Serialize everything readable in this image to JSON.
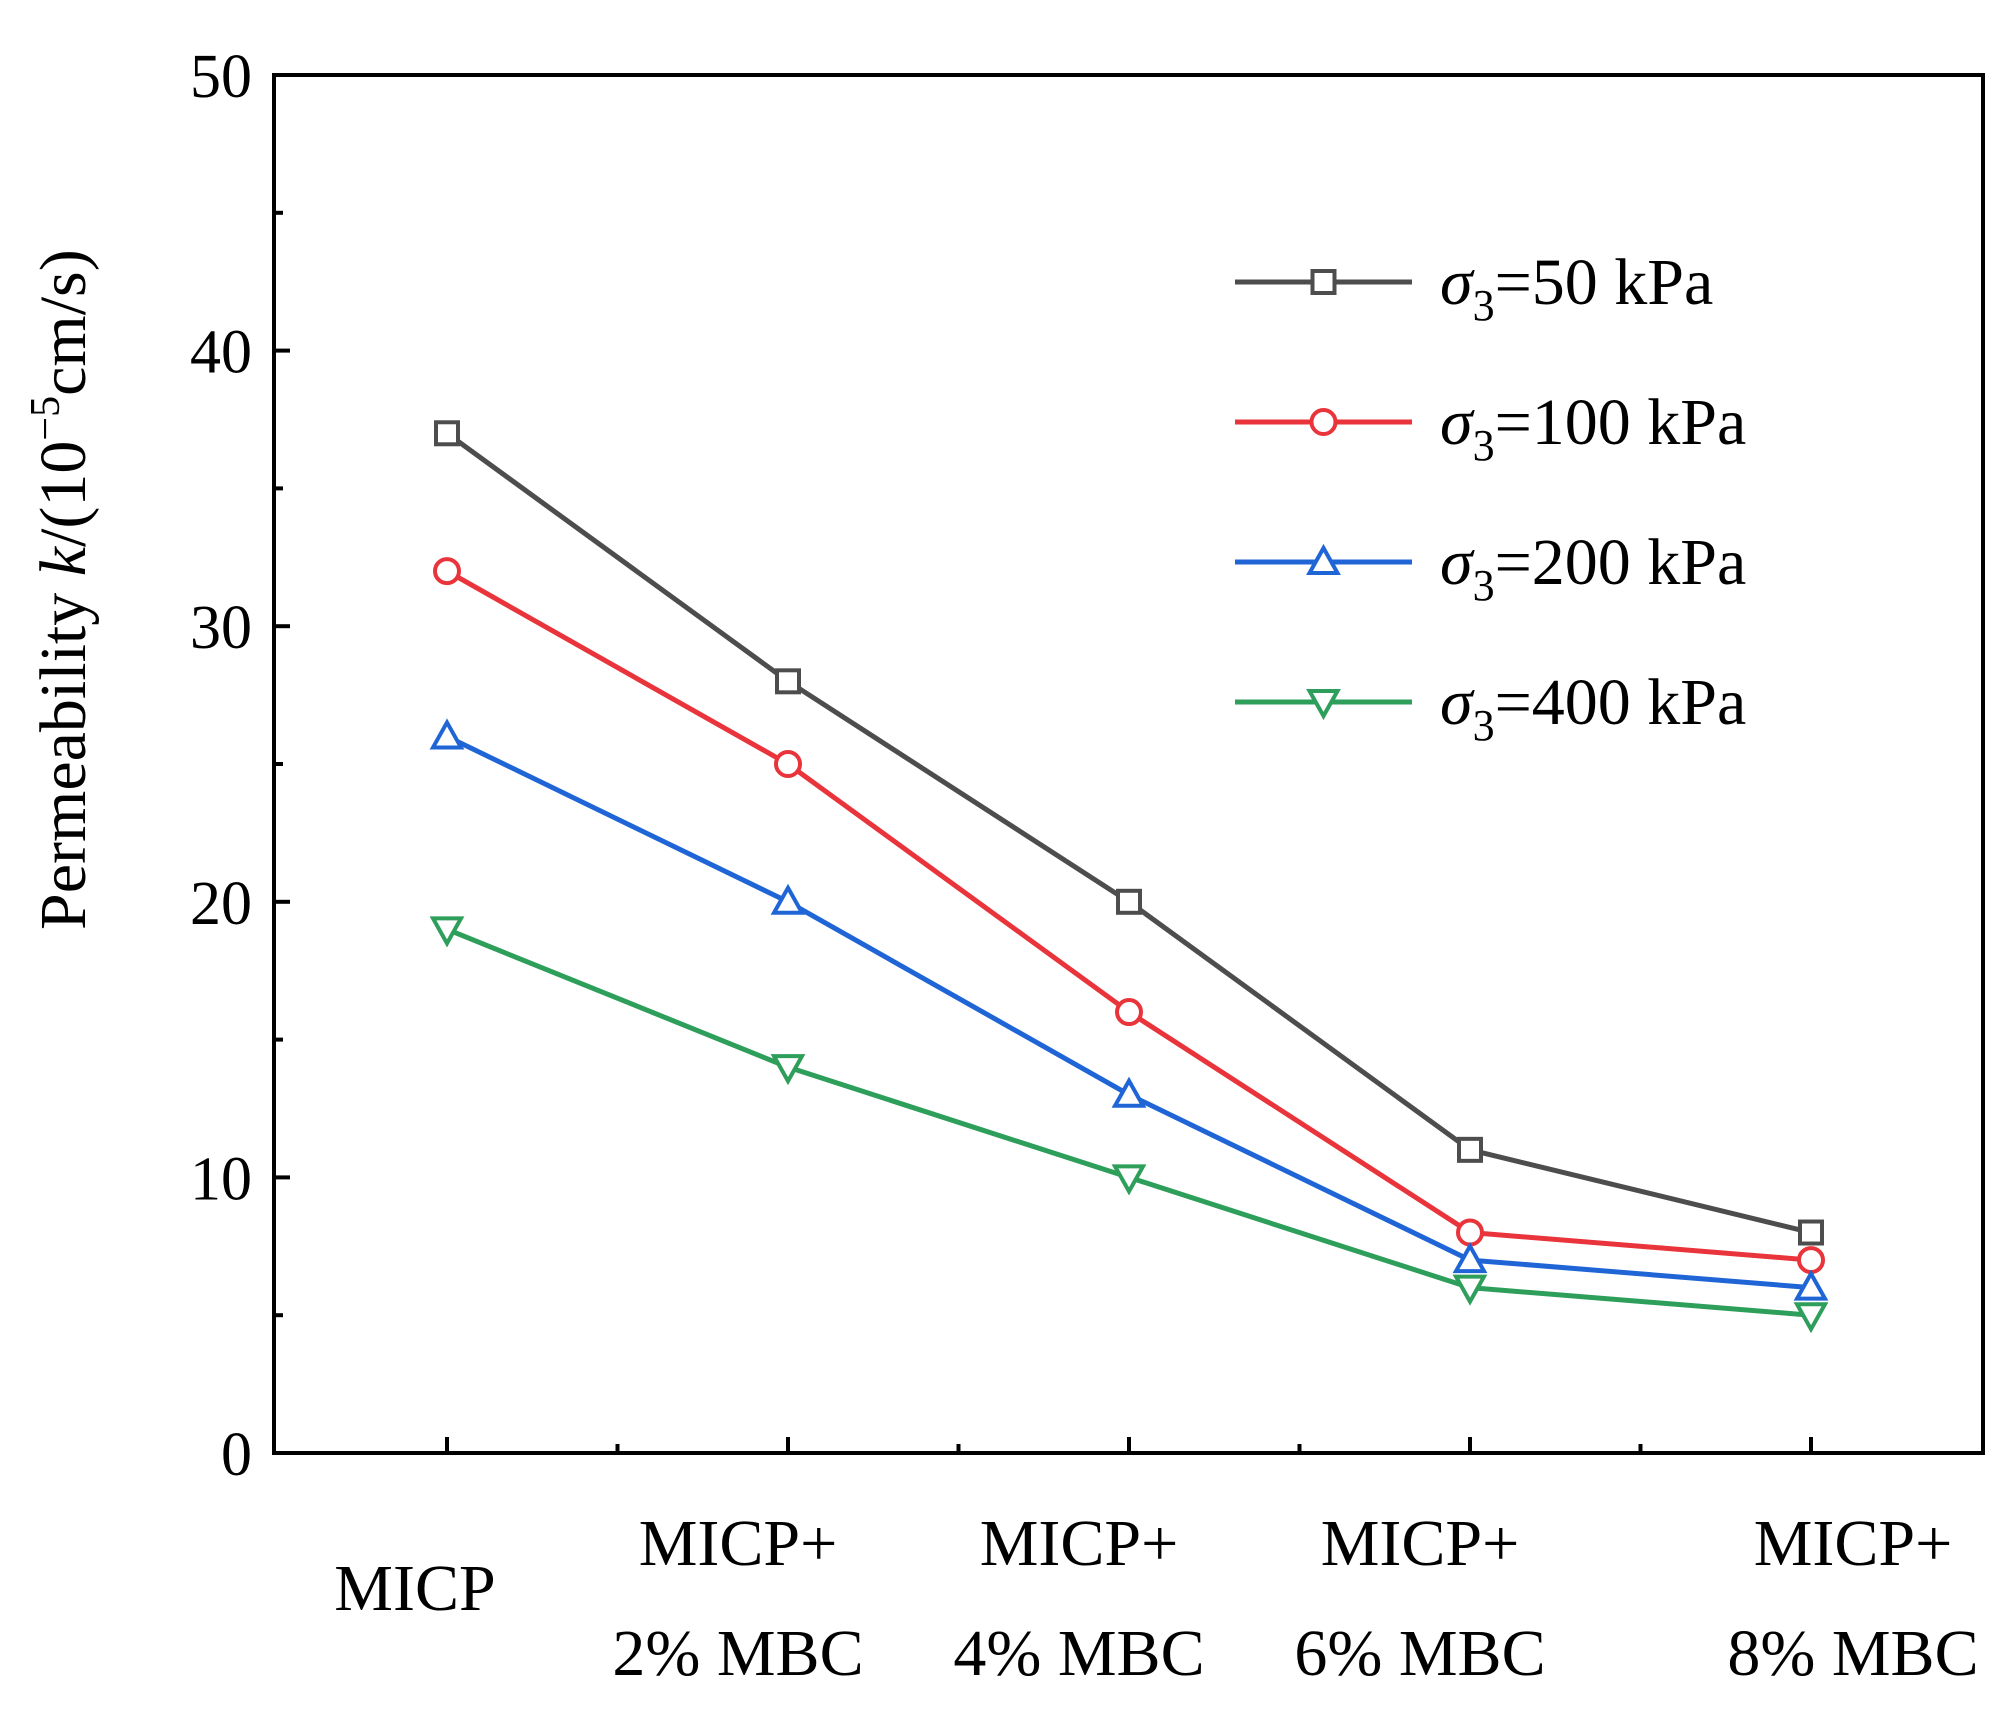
{
  "chart_data": {
    "type": "line",
    "title": "",
    "xlabel": "",
    "ylabel": {
      "prefix": "Permeability ",
      "k": "k",
      "mid": "/(10",
      "exp": "−5",
      "suffix": "cm/s)"
    },
    "categories": [
      {
        "line1": "MICP",
        "line2": ""
      },
      {
        "line1": "MICP+",
        "line2": "2% MBC"
      },
      {
        "line1": "MICP+",
        "line2": "4% MBC"
      },
      {
        "line1": "MICP+",
        "line2": "6% MBC"
      },
      {
        "line1": "MICP+",
        "line2": "8% MBC"
      }
    ],
    "ylim": [
      0,
      50
    ],
    "yticks": [
      0,
      10,
      20,
      30,
      40,
      50
    ],
    "legend_position": "top-right",
    "series": [
      {
        "sigma": "σ",
        "sub": "3",
        "rest": "=50 kPa",
        "color": "#4d4d4d",
        "marker": "square",
        "values": [
          37,
          28,
          20,
          11,
          8
        ]
      },
      {
        "sigma": "σ",
        "sub": "3",
        "rest": "=100 kPa",
        "color": "#e8343a",
        "marker": "circle",
        "values": [
          32,
          25,
          16,
          8,
          7
        ]
      },
      {
        "sigma": "σ",
        "sub": "3",
        "rest": "=200 kPa",
        "color": "#1f65d6",
        "marker": "triangle-up",
        "values": [
          26,
          20,
          13,
          7,
          6
        ]
      },
      {
        "sigma": "σ",
        "sub": "3",
        "rest": "=400 kPa",
        "color": "#2e9e5b",
        "marker": "triangle-down",
        "values": [
          19,
          14,
          10,
          6,
          5
        ]
      }
    ]
  }
}
